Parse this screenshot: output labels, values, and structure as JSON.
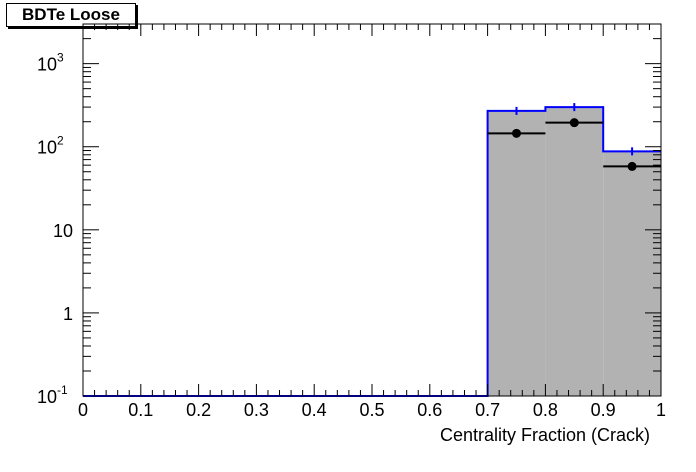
{
  "chart_data": {
    "type": "histogram",
    "title": "BDTe Loose",
    "xlabel": "Centrality Fraction (Crack)",
    "ylabel": "",
    "xlim": [
      0,
      1
    ],
    "ylim": [
      0.1,
      3000
    ],
    "yscale": "log",
    "xticks": [
      "0",
      "0.1",
      "0.2",
      "0.3",
      "0.4",
      "0.5",
      "0.6",
      "0.7",
      "0.8",
      "0.9",
      "1"
    ],
    "yticks": [
      {
        "base": "10",
        "exp": "-1",
        "value": 0.1
      },
      {
        "base": "1",
        "exp": "",
        "value": 1
      },
      {
        "base": "10",
        "exp": "",
        "value": 10
      },
      {
        "base": "10",
        "exp": "2",
        "value": 100
      },
      {
        "base": "10",
        "exp": "3",
        "value": 1000
      }
    ],
    "bin_edges": [
      0,
      0.1,
      0.2,
      0.3,
      0.4,
      0.5,
      0.6,
      0.7,
      0.8,
      0.9,
      1.0
    ],
    "series": [
      {
        "kind": "filled-histogram",
        "color": "#0000ff",
        "fill": "#b2b2b2",
        "values": [
          0,
          0,
          0,
          0,
          0,
          0,
          0,
          270,
          300,
          88
        ]
      },
      {
        "kind": "data-points",
        "color": "#000000",
        "x": [
          0.75,
          0.85,
          0.95
        ],
        "y": [
          145,
          195,
          58
        ],
        "xerr": 0.05
      }
    ],
    "grid": false,
    "legend": "none"
  }
}
